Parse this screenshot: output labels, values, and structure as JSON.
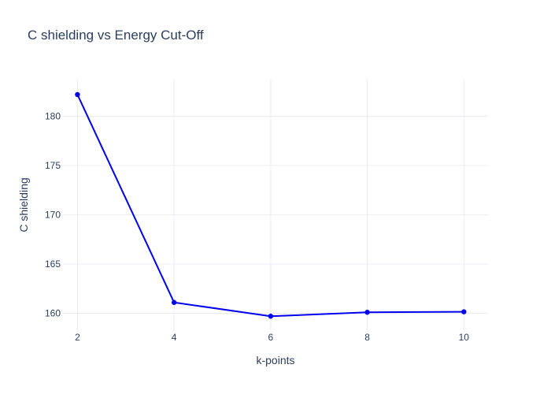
{
  "chart_data": {
    "type": "line",
    "title": "C shielding vs Energy Cut-Off",
    "xlabel": "k-points",
    "ylabel": "C shielding",
    "x": [
      2,
      4,
      6,
      8,
      10
    ],
    "series": [
      {
        "values": [
          182.2,
          161.1,
          159.7,
          160.1,
          160.15
        ],
        "color": "#0000ee"
      }
    ],
    "x_ticks": [
      2,
      4,
      6,
      8,
      10
    ],
    "y_ticks": [
      160,
      165,
      170,
      175,
      180
    ],
    "xlim": [
      1.7,
      10.5
    ],
    "ylim": [
      158.2,
      183.8
    ],
    "grid": true,
    "legend": "none"
  }
}
